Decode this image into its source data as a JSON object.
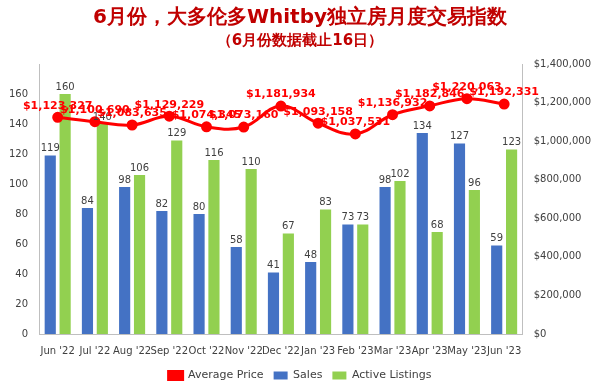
{
  "chart_data": {
    "type": "bar",
    "title": "6月份，大多伦多Whitby独立房月度交易指数",
    "subtitle": "（6月份数据截止16日）",
    "categories": [
      "Jun '22",
      "Jul '22",
      "Aug '22",
      "Sep '22",
      "Oct '22",
      "Nov '22",
      "Dec '22",
      "Jan '23",
      "Feb '23",
      "Mar '23",
      "Apr '23",
      "May '23",
      "Jun '23"
    ],
    "series": [
      {
        "name": "Sales",
        "type": "bar",
        "color": "#4472c4",
        "values": [
          119,
          84,
          98,
          82,
          80,
          58,
          41,
          48,
          73,
          98,
          134,
          127,
          59
        ]
      },
      {
        "name": "Active Listings",
        "type": "bar",
        "color": "#92d050",
        "values": [
          160,
          140,
          106,
          129,
          116,
          110,
          67,
          83,
          73,
          102,
          68,
          96,
          123
        ]
      },
      {
        "name": "Average Price",
        "type": "line",
        "color": "#ff0000",
        "marker": "circle",
        "axis": "y2",
        "values": [
          1123327,
          1100690,
          1083635,
          1129229,
          1074345,
          1073160,
          1181934,
          1093158,
          1037531,
          1136932,
          1182846,
          1220063,
          1192331
        ],
        "value_labels": [
          "$1,123,327",
          "$1,100,690",
          "$1,083,635",
          "$1,129,229",
          "$1,074,345",
          "$1,073,160",
          "$1,181,934",
          "$1,093,158",
          "$1,037,531",
          "$1,136,932",
          "$1,182,846",
          "$1,220,063",
          "$1,192,331"
        ]
      }
    ],
    "ylim": [
      0,
      180
    ],
    "yticks": [
      0,
      20,
      40,
      60,
      80,
      100,
      120,
      140,
      160
    ],
    "y2lim": [
      0,
      1400000
    ],
    "y2ticks": [
      {
        "value": 0,
        "label": "$0"
      },
      {
        "value": 200000,
        "label": "$200,000"
      },
      {
        "value": 400000,
        "label": "$400,000"
      },
      {
        "value": 600000,
        "label": "$600,000"
      },
      {
        "value": 800000,
        "label": "$800,000"
      },
      {
        "value": 1000000,
        "label": "$1,000,000"
      },
      {
        "value": 1200000,
        "label": "$1,200,000"
      },
      {
        "value": 1400000,
        "label": "$1,400,000"
      }
    ],
    "grid": false,
    "legend": "bottom",
    "data_labels": true
  }
}
